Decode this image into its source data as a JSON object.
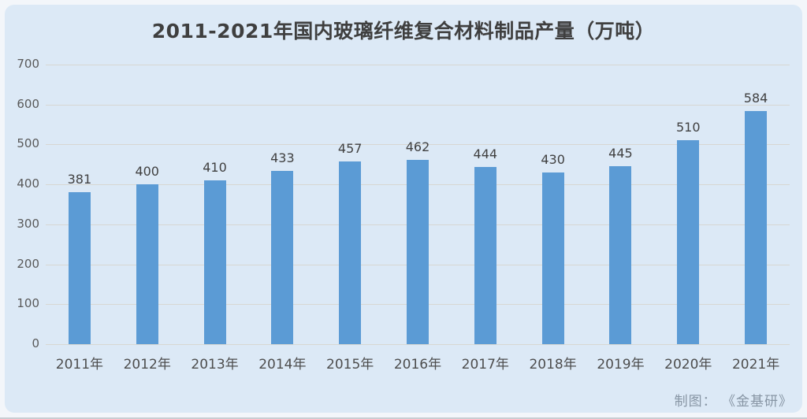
{
  "page": {
    "source_credit": "制图： 《金基研》"
  },
  "chart_data": {
    "type": "bar",
    "title": "2011-2021年国内玻璃纤维复合材料制品产量（万吨）",
    "categories": [
      "2011年",
      "2012年",
      "2013年",
      "2014年",
      "2015年",
      "2016年",
      "2017年",
      "2018年",
      "2019年",
      "2020年",
      "2021年"
    ],
    "values": [
      381,
      400,
      410,
      433,
      457,
      462,
      444,
      430,
      445,
      510,
      584
    ],
    "xlabel": "",
    "ylabel": "",
    "ylim": [
      0,
      700
    ],
    "yticks": [
      0,
      100,
      200,
      300,
      400,
      500,
      600,
      700
    ],
    "grid": true,
    "legend_position": "none",
    "data_labels": true,
    "colors": {
      "bar": "#5b9bd5",
      "panel_background": "#dce9f6",
      "outer_background": "#f3f6fa",
      "gridline": "#d5d0c6",
      "title_text": "#3f3f3f",
      "value_label_text": "#404040",
      "axis_tick_text": "#595959",
      "source_credit_text": "#8795a4"
    }
  }
}
